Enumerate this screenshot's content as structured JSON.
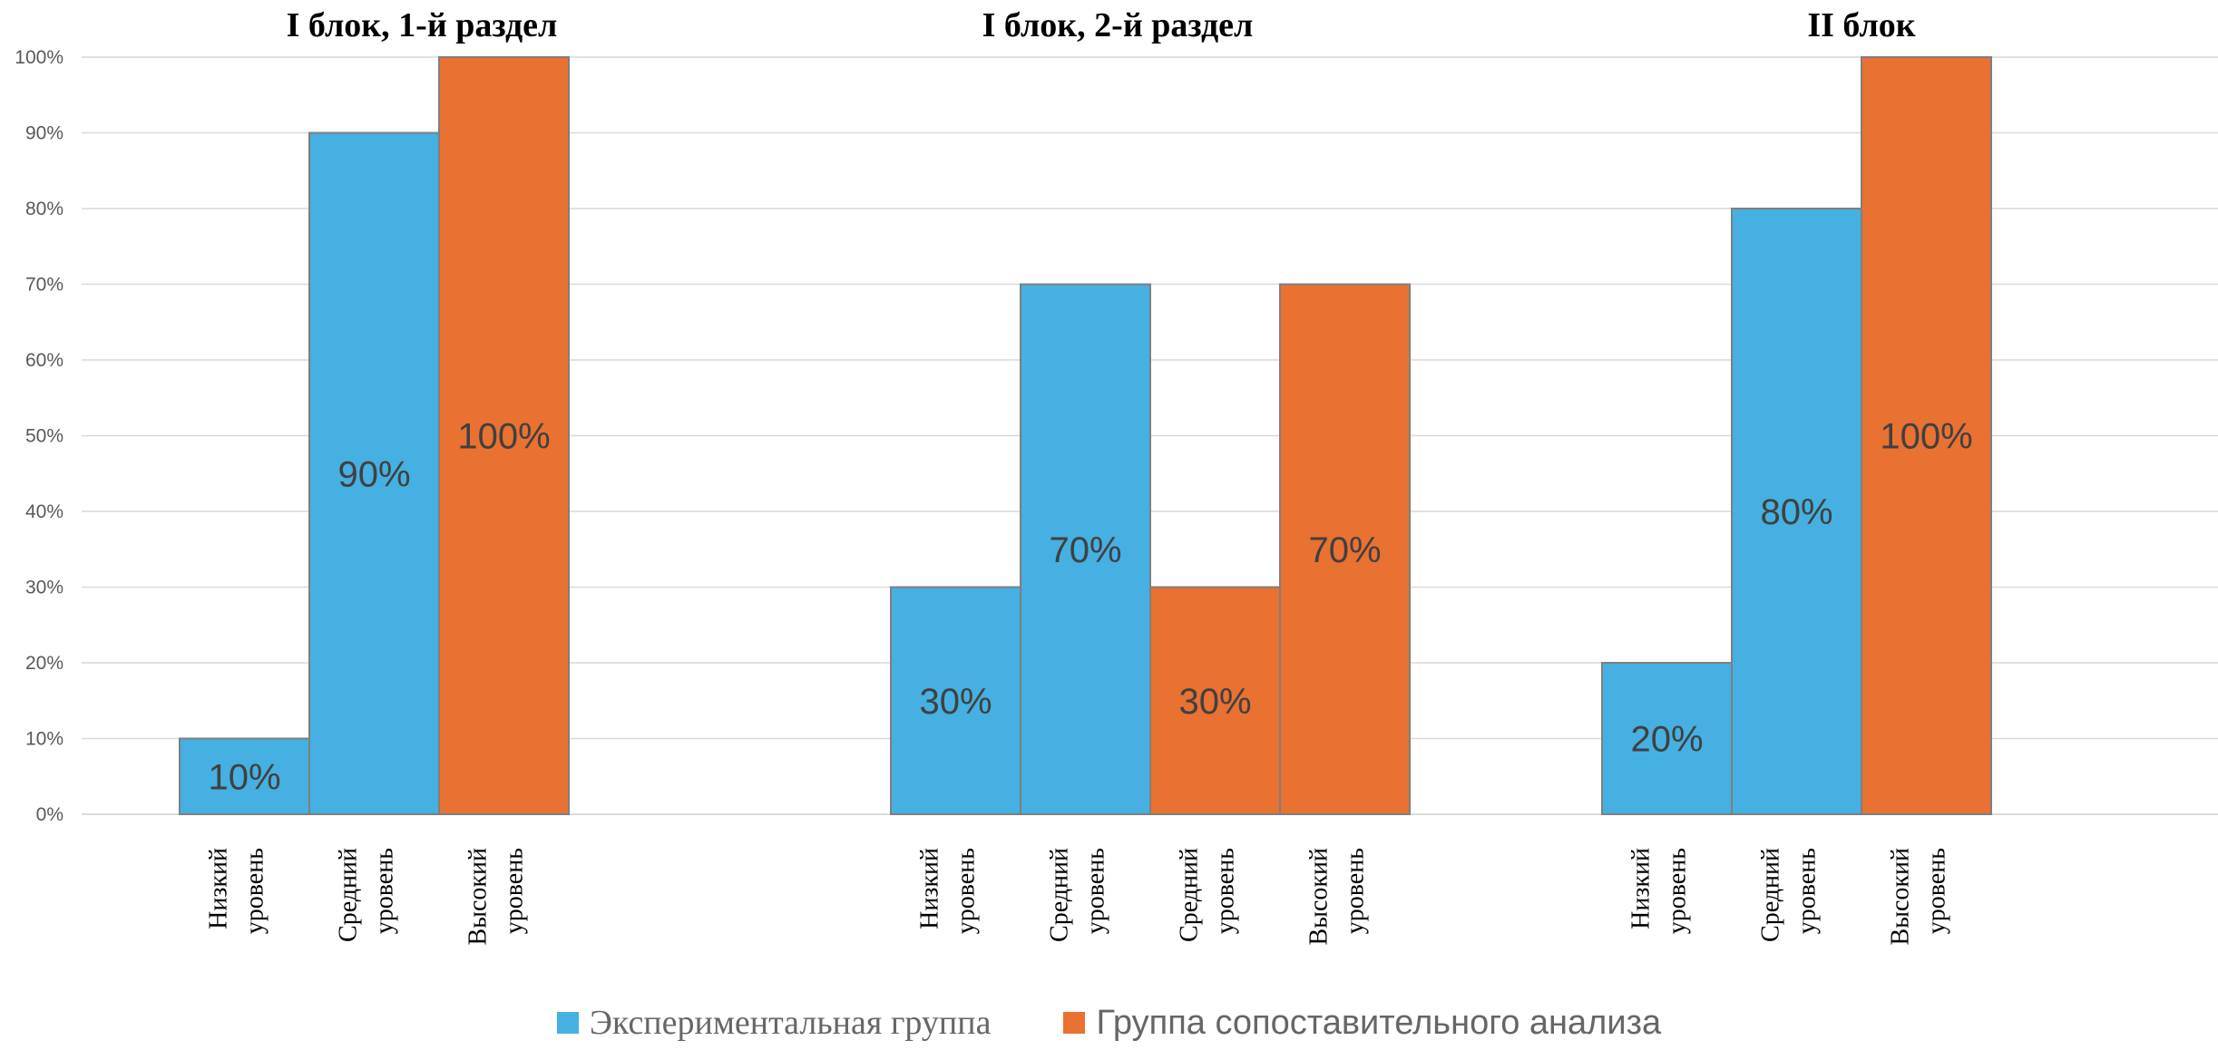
{
  "chart_data": {
    "type": "bar",
    "ylim": [
      0,
      100
    ],
    "yticks": [
      "0%",
      "10%",
      "20%",
      "30%",
      "40%",
      "50%",
      "60%",
      "70%",
      "80%",
      "90%",
      "100%"
    ],
    "grid": true,
    "legend_position": "bottom",
    "legend": [
      {
        "name": "Экспериментальная группа",
        "color": "#45B0E1"
      },
      {
        "name": "Группа сопоставительного анализа",
        "color": "#E97132"
      }
    ],
    "panels": [
      {
        "title": "I блок, 1-й раздел",
        "bars": [
          {
            "category": "Низкий уровень",
            "series": "Экспериментальная группа",
            "value": 10,
            "label": "10%"
          },
          {
            "category": "Средний уровень",
            "series": "Экспериментальная группа",
            "value": 90,
            "label": "90%"
          },
          {
            "category": "Высокий уровень",
            "series": "Группа сопоставительного анализа",
            "value": 100,
            "label": "100%"
          }
        ]
      },
      {
        "title": "I блок, 2-й раздел",
        "bars": [
          {
            "category": "Низкий уровень",
            "series": "Экспериментальная группа",
            "value": 30,
            "label": "30%"
          },
          {
            "category": "Средний уровень",
            "series": "Экспериментальная группа",
            "value": 70,
            "label": "70%"
          },
          {
            "category": "Средний уровень",
            "series": "Группа сопоставительного анализа",
            "value": 30,
            "label": "30%"
          },
          {
            "category": "Высокий уровень",
            "series": "Группа сопоставительного анализа",
            "value": 70,
            "label": "70%"
          }
        ]
      },
      {
        "title": "II блок",
        "bars": [
          {
            "category": "Низкий уровень",
            "series": "Экспериментальная группа",
            "value": 20,
            "label": "20%"
          },
          {
            "category": "Средний уровень",
            "series": "Экспериментальная группа",
            "value": 80,
            "label": "80%"
          },
          {
            "category": "Высокий уровень",
            "series": "Группа сопоставительного анализа",
            "value": 100,
            "label": "100%"
          }
        ]
      }
    ]
  }
}
